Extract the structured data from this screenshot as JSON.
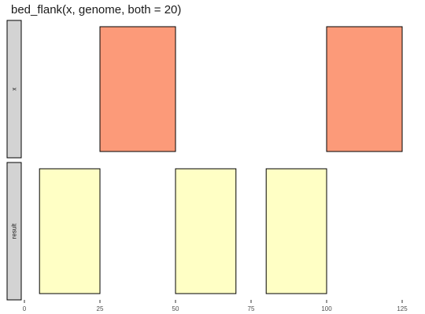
{
  "chart_data": {
    "type": "bar",
    "title": "bed_flank(x, genome, both = 20)",
    "xlabel": "",
    "ylabel": "",
    "xlim": [
      0,
      125
    ],
    "x_ticks": [
      0,
      25,
      50,
      75,
      100,
      125
    ],
    "grid": false,
    "panels": [
      {
        "name": "x",
        "fill": "#fc9a79",
        "intervals": [
          {
            "start": 25,
            "end": 50
          },
          {
            "start": 100,
            "end": 125
          }
        ]
      },
      {
        "name": "result",
        "fill": "#ffffc5",
        "intervals": [
          {
            "start": 5,
            "end": 25
          },
          {
            "start": 50,
            "end": 70
          },
          {
            "start": 80,
            "end": 100
          }
        ]
      }
    ]
  },
  "colors": {
    "strip_fill": "#d3d3d3",
    "stroke": "#000000",
    "axis": "#333333"
  }
}
